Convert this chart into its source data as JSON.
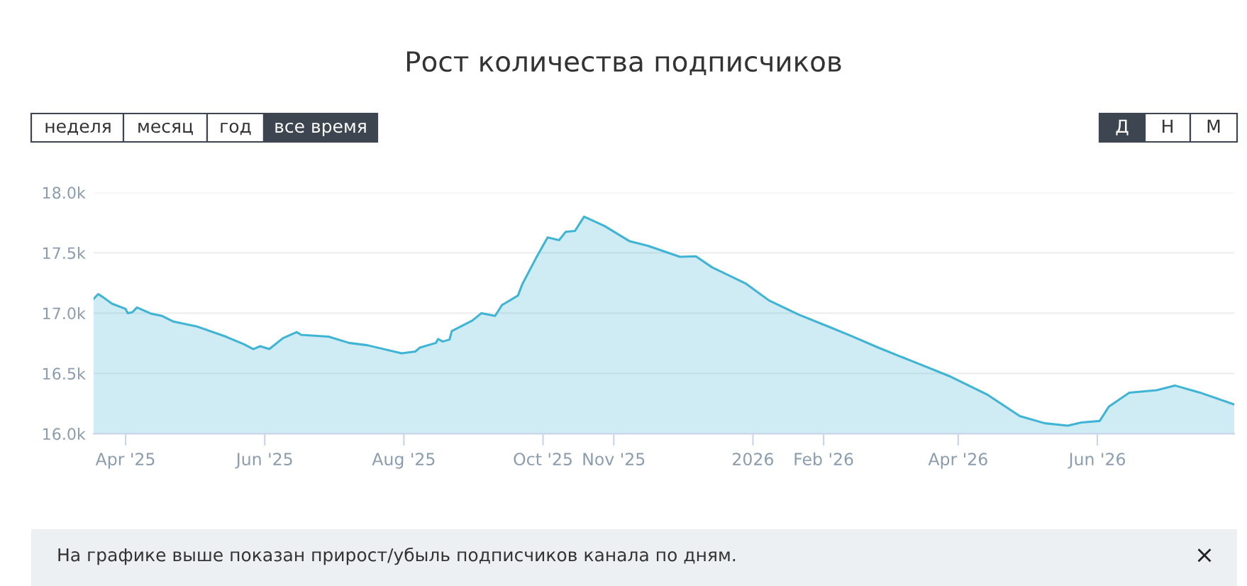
{
  "chart_data": {
    "type": "area",
    "title": "Рост количества подписчиков",
    "x": [
      "2025-03-18",
      "2025-03-20",
      "2025-03-22",
      "2025-03-26",
      "2025-04-01",
      "2025-04-02",
      "2025-04-04",
      "2025-04-06",
      "2025-04-12",
      "2025-04-17",
      "2025-04-22",
      "2025-05-02",
      "2025-05-15",
      "2025-05-23",
      "2025-05-27",
      "2025-05-30",
      "2025-06-03",
      "2025-06-09",
      "2025-06-15",
      "2025-06-17",
      "2025-06-29",
      "2025-07-08",
      "2025-07-16",
      "2025-07-31",
      "2025-08-06",
      "2025-08-08",
      "2025-08-15",
      "2025-08-16",
      "2025-08-18",
      "2025-08-21",
      "2025-08-22",
      "2025-08-31",
      "2025-09-04",
      "2025-09-10",
      "2025-09-13",
      "2025-09-20",
      "2025-09-22",
      "2025-09-28",
      "2025-10-03",
      "2025-10-08",
      "2025-10-11",
      "2025-10-15",
      "2025-10-19",
      "2025-10-28",
      "2025-11-08",
      "2025-11-16",
      "2025-11-30",
      "2025-12-07",
      "2025-12-14",
      "2025-12-29",
      "2026-01-08",
      "2026-01-21",
      "2026-02-04",
      "2026-02-13",
      "2026-02-25",
      "2026-03-14",
      "2026-03-28",
      "2026-04-14",
      "2026-04-28",
      "2026-05-09",
      "2026-05-19",
      "2026-05-25",
      "2026-06-02",
      "2026-06-06",
      "2026-06-15",
      "2026-06-27",
      "2026-07-05",
      "2026-07-16",
      "2026-07-31"
    ],
    "series": [
      {
        "color": "#3fb4d4",
        "values": [
          17118,
          17158,
          17134,
          17079,
          17035,
          17000,
          17008,
          17047,
          16997,
          16977,
          16930,
          16891,
          16805,
          16741,
          16702,
          16726,
          16702,
          16793,
          16843,
          16820,
          16805,
          16753,
          16734,
          16667,
          16682,
          16714,
          16753,
          16785,
          16765,
          16781,
          16852,
          16938,
          17000,
          16977,
          17067,
          17146,
          17244,
          17459,
          17628,
          17605,
          17675,
          17682,
          17800,
          17722,
          17596,
          17558,
          17467,
          17471,
          17381,
          17244,
          17106,
          16988,
          16882,
          16812,
          16714,
          16585,
          16479,
          16322,
          16146,
          16087,
          16067,
          16094,
          16106,
          16224,
          16341,
          16361,
          16400,
          16341,
          16243
        ]
      }
    ],
    "xlim": [
      "2025-03-18",
      "2026-07-31"
    ],
    "xticks": [
      {
        "value": "2025-04-01",
        "label": "Apr '25"
      },
      {
        "value": "2025-06-01",
        "label": "Jun '25"
      },
      {
        "value": "2025-08-01",
        "label": "Aug '25"
      },
      {
        "value": "2025-10-01",
        "label": "Oct '25"
      },
      {
        "value": "2025-11-01",
        "label": "Nov '25"
      },
      {
        "value": "2026-01-01",
        "label": "2026"
      },
      {
        "value": "2026-02-01",
        "label": "Feb '26"
      },
      {
        "value": "2026-04-01",
        "label": "Apr '26"
      },
      {
        "value": "2026-06-01",
        "label": "Jun '26"
      }
    ],
    "ylim": [
      16000,
      18000
    ],
    "yticks": [
      {
        "value": 16000,
        "label": "16.0k"
      },
      {
        "value": 16500,
        "label": "16.5k"
      },
      {
        "value": 17000,
        "label": "17.0k"
      },
      {
        "value": 17500,
        "label": "17.5k"
      },
      {
        "value": 18000,
        "label": "18.0k"
      }
    ],
    "grid": "y",
    "legend": false,
    "annotations": [
      "неделя",
      "месяц",
      "год",
      "все время",
      "Д",
      "Н",
      "М",
      "На графике выше показан прирост/убыль подписчиков канала по дням.",
      "×"
    ]
  }
}
